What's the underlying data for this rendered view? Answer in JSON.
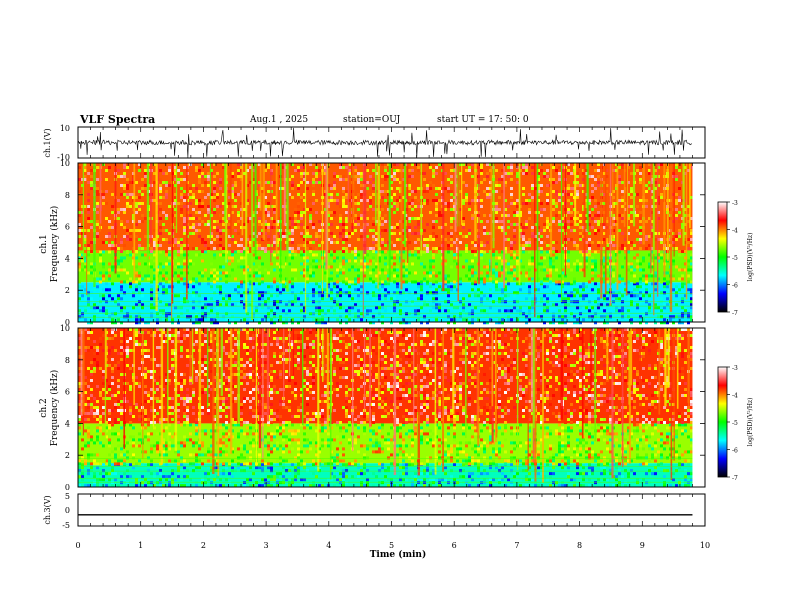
{
  "header": {
    "title": "VLF Spectra",
    "date": "Aug.1 , 2025",
    "station": "station=OUJ",
    "start_ut": "start UT = 17: 50: 0"
  },
  "colorbar": {
    "label": "log(PSD)(V²/Hz)",
    "ticks": [
      "-3",
      "-4",
      "-5",
      "-6",
      "-7"
    ],
    "stops": [
      "#ffffff",
      "#ff0000",
      "#ffff00",
      "#00ff00",
      "#00ffff",
      "#0000ff",
      "#000000"
    ]
  },
  "chart_data": [
    {
      "type": "line",
      "title": "VLF Spectra",
      "ylabel": "ch.1(V)",
      "xlim": [
        0,
        10
      ],
      "ylim": [
        -10,
        10
      ],
      "yticks": [
        "10",
        "-10"
      ],
      "description_of_series": "noisy waveform with spikes"
    },
    {
      "type": "heatmap",
      "ylabel_top": "ch.1",
      "ylabel": "Frequency (kHz)",
      "xlim": [
        0,
        10
      ],
      "ylim": [
        0,
        10
      ],
      "yticks": [
        "0",
        "2",
        "4",
        "6",
        "8",
        "10"
      ],
      "zlim": [
        -7,
        -3
      ],
      "bands": [
        {
          "from": 0,
          "to": 2.5,
          "level": -5.7
        },
        {
          "from": 2.5,
          "to": 4.5,
          "level": -4.7
        },
        {
          "from": 4.5,
          "to": 10,
          "level": -3.9
        }
      ]
    },
    {
      "type": "heatmap",
      "ylabel_top": "ch.2",
      "ylabel": "Frequency (kHz)",
      "xlim": [
        0,
        10
      ],
      "ylim": [
        0,
        10
      ],
      "yticks": [
        "0",
        "2",
        "4",
        "6",
        "8",
        "10"
      ],
      "zlim": [
        -7,
        -3
      ],
      "bands": [
        {
          "from": 0,
          "to": 1.5,
          "level": -5.5
        },
        {
          "from": 1.5,
          "to": 4,
          "level": -4.6
        },
        {
          "from": 4,
          "to": 10,
          "level": -3.8
        }
      ]
    },
    {
      "type": "line",
      "ylabel": "ch.3(V)",
      "xlabel": "Time (min)",
      "xlim": [
        0,
        10
      ],
      "ylim": [
        -5,
        5
      ],
      "yticks": [
        "5",
        "0",
        "-5"
      ],
      "xticks": [
        "0",
        "1",
        "2",
        "3",
        "4",
        "5",
        "6",
        "7",
        "8",
        "9",
        "10"
      ],
      "x": [
        0,
        9.8
      ],
      "y": [
        -1.5,
        -1.5
      ]
    }
  ]
}
